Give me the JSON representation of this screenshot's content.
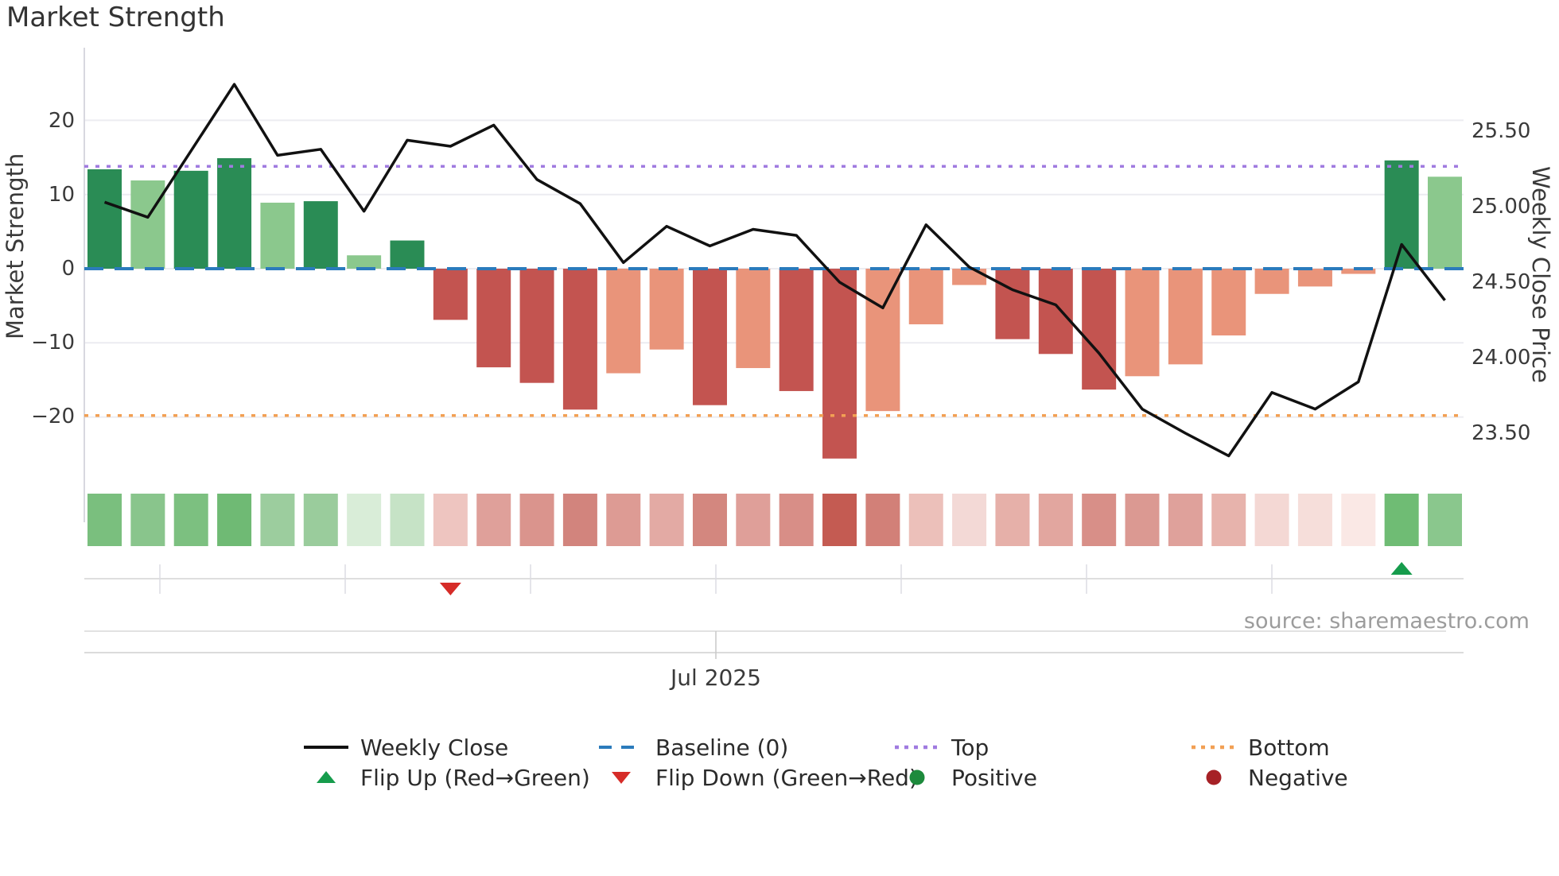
{
  "title": "Market Strength",
  "source_text": "source: sharemaestro.com",
  "axes": {
    "left_label": "Market Strength",
    "right_label": "Weekly Close Price",
    "left_ticks": [
      "20",
      "10",
      "0",
      "−10",
      "−20"
    ],
    "right_ticks": [
      "25.50",
      "25.00",
      "24.50",
      "24.00",
      "23.50"
    ],
    "x_tick_label": "Jul 2025"
  },
  "legend": {
    "weekly_close": "Weekly Close",
    "baseline": "Baseline (0)",
    "top": "Top",
    "bottom": "Bottom",
    "flip_up": "Flip Up (Red→Green)",
    "flip_down": "Flip Down (Green→Red)",
    "positive": "Positive",
    "negative": "Negative"
  },
  "colors": {
    "line": "#111111",
    "baseline": "#2b7bbc",
    "top_line": "#a07be0",
    "bottom_line": "#f2a054",
    "flip_up_marker": "#169c4c",
    "flip_down_marker": "#d62c28",
    "positive_dot": "#1d8a3c",
    "negative_dot": "#a62126",
    "bar_dark_green": "#2a8c55",
    "bar_light_green": "#8bc88d",
    "bar_dark_red": "#c35450",
    "bar_salmon": "#e9947a",
    "grid": "#ececf1",
    "spine": "#d8d8df"
  },
  "chart_data": {
    "type": "combo",
    "title": "Market Strength",
    "x_axis": {
      "visible_tick": "Jul 2025",
      "points": 32,
      "unit": "week"
    },
    "left_axis": {
      "label": "Market Strength",
      "ticks": [
        20,
        10,
        0,
        -10,
        -20
      ],
      "ylim": [
        -29,
        30
      ]
    },
    "right_axis": {
      "label": "Weekly Close Price",
      "ticks": [
        25.5,
        25.0,
        24.5,
        24.0,
        23.5
      ]
    },
    "reference_lines": {
      "baseline": 0,
      "top": 13.8,
      "bottom": -19.8
    },
    "series": [
      {
        "name": "Market Strength",
        "type": "bar",
        "axis": "left",
        "values": [
          13.4,
          11.9,
          13.2,
          14.9,
          8.9,
          9.1,
          1.8,
          3.8,
          -6.9,
          -13.3,
          -15.4,
          -19.0,
          -14.1,
          -10.9,
          -18.4,
          -13.4,
          -16.5,
          -25.6,
          -19.2,
          -7.5,
          -2.2,
          -9.5,
          -11.5,
          -16.3,
          -14.5,
          -12.9,
          -9.0,
          -3.4,
          -2.4,
          -0.7,
          14.6,
          12.4
        ],
        "colors": [
          "#2a8c55",
          "#8bc88d",
          "#2a8c55",
          "#2a8c55",
          "#8bc88d",
          "#2a8c55",
          "#8bc88d",
          "#2a8c55",
          "#c35450",
          "#c35450",
          "#c35450",
          "#c35450",
          "#e9947a",
          "#e9947a",
          "#c35450",
          "#e9947a",
          "#c35450",
          "#c35450",
          "#e9947a",
          "#e9947a",
          "#e9947a",
          "#c35450",
          "#c35450",
          "#c35450",
          "#e9947a",
          "#e9947a",
          "#e9947a",
          "#e9947a",
          "#e9947a",
          "#e9947a",
          "#2a8c55",
          "#8bc88d"
        ]
      },
      {
        "name": "Weekly Close",
        "type": "line",
        "axis": "right",
        "values": [
          25.03,
          24.93,
          25.37,
          25.81,
          25.34,
          25.38,
          24.97,
          25.44,
          25.4,
          25.54,
          25.18,
          25.02,
          24.63,
          24.87,
          24.74,
          24.85,
          24.81,
          24.5,
          24.33,
          24.88,
          24.6,
          24.45,
          24.35,
          24.03,
          23.66,
          23.5,
          23.35,
          23.77,
          23.66,
          23.84,
          24.75,
          24.38
        ]
      }
    ],
    "heatmap_colors": [
      "#7abf7e",
      "#89c58c",
      "#7cc080",
      "#6fba74",
      "#9ccd9e",
      "#9acc9c",
      "#d9edd8",
      "#c6e3c6",
      "#eec5c0",
      "#dfa09a",
      "#da948d",
      "#d2847d",
      "#dd9b94",
      "#e3aaa4",
      "#d3877f",
      "#df9f99",
      "#d88e87",
      "#c45b52",
      "#d28078",
      "#ecc0ba",
      "#f3d9d6",
      "#e6b0a9",
      "#e2a69f",
      "#d88f88",
      "#db9992",
      "#dfa19b",
      "#e7b3ac",
      "#f4d8d4",
      "#f6deda",
      "#fae8e5",
      "#6fbc74",
      "#8ac78d"
    ],
    "markers": {
      "flip_down_index": 8,
      "flip_up_index": 30
    }
  }
}
